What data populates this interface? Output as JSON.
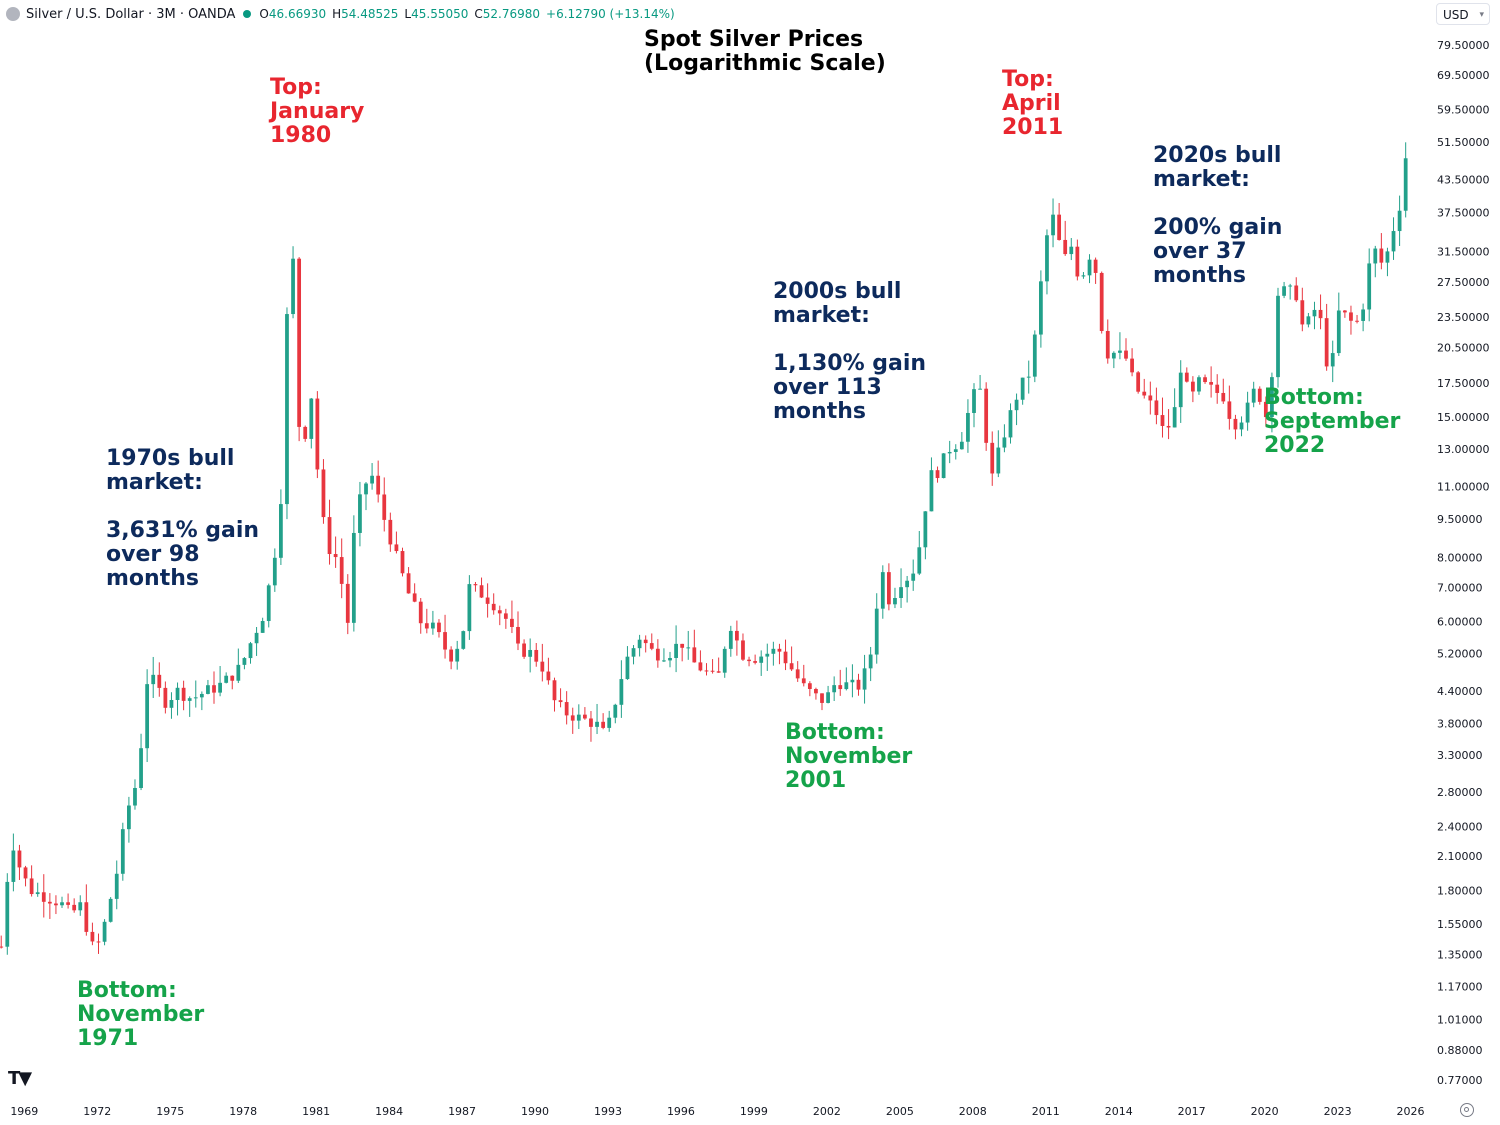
{
  "header": {
    "symbol": "Silver / U.S. Dollar · 3M · OANDA",
    "open_label": "O",
    "open": "46.66930",
    "high_label": "H",
    "high": "54.48525",
    "low_label": "L",
    "low": "45.55050",
    "close_label": "C",
    "close": "52.76980",
    "change": "+6.12790 (+13.14%)",
    "currency": "USD"
  },
  "colors": {
    "up": "#22a08a",
    "down": "#e8363f",
    "axis_text": "#131722",
    "annot_red": "#e8262f",
    "annot_navy": "#0d2a5c",
    "annot_green": "#15a34a"
  },
  "annotations": {
    "top_1980": "Top:\nJanuary\n1980",
    "top_2011": "Top:\nApril\n2011",
    "bull_1970s": "1970s bull\nmarket:\n\n3,631% gain\nover 98\nmonths",
    "bull_2000s": "2000s bull\nmarket:\n\n1,130% gain\nover 113\nmonths",
    "bull_2020s": "2020s bull\nmarket:\n\n200% gain\nover 37\nmonths",
    "bottom_1971": "Bottom:\nNovember\n1971",
    "bottom_2001": "Bottom:\nNovember\n2001",
    "bottom_2022": "Bottom:\nSeptember\n2022"
  },
  "chart_data": {
    "type": "candlestick",
    "title": "Spot Silver Prices\n(Logarithmic Scale)",
    "y_scale": "log",
    "ylim": [
      0.72,
      85
    ],
    "x_range": [
      1968.0,
      2026.8
    ],
    "x_ticks": [
      "1969",
      "1972",
      "1975",
      "1978",
      "1981",
      "1984",
      "1987",
      "1990",
      "1993",
      "1996",
      "1999",
      "2002",
      "2005",
      "2008",
      "2011",
      "2014",
      "2017",
      "2020",
      "2023",
      "2026"
    ],
    "y_ticks": [
      "79.50000",
      "69.50000",
      "59.50000",
      "51.50000",
      "43.50000",
      "37.50000",
      "31.50000",
      "27.50000",
      "23.50000",
      "20.50000",
      "17.50000",
      "15.00000",
      "13.00000",
      "11.00000",
      "9.50000",
      "8.00000",
      "7.00000",
      "6.00000",
      "5.20000",
      "4.40000",
      "3.80000",
      "3.30000",
      "2.80000",
      "2.40000",
      "2.10000",
      "1.80000",
      "1.55000",
      "1.35000",
      "1.17000",
      "1.01000",
      "0.88000",
      "0.77000"
    ],
    "quarterly_close_anchors": [
      [
        1968.1,
        1.4
      ],
      [
        1968.35,
        2.05
      ],
      [
        1968.6,
        2.25
      ],
      [
        1968.85,
        1.95
      ],
      [
        1969.3,
        1.8
      ],
      [
        1969.9,
        1.75
      ],
      [
        1970.5,
        1.7
      ],
      [
        1970.9,
        1.62
      ],
      [
        1971.3,
        1.68
      ],
      [
        1971.9,
        1.35
      ],
      [
        1972.3,
        1.55
      ],
      [
        1972.8,
        1.95
      ],
      [
        1973.2,
        2.55
      ],
      [
        1973.7,
        3.0
      ],
      [
        1974.0,
        4.6
      ],
      [
        1974.3,
        4.6
      ],
      [
        1974.8,
        4.2
      ],
      [
        1975.3,
        4.4
      ],
      [
        1975.9,
        4.25
      ],
      [
        1976.5,
        4.4
      ],
      [
        1977.0,
        4.5
      ],
      [
        1977.5,
        4.7
      ],
      [
        1977.9,
        4.9
      ],
      [
        1978.4,
        5.6
      ],
      [
        1978.9,
        6.3
      ],
      [
        1979.2,
        7.8
      ],
      [
        1979.5,
        9.0
      ],
      [
        1979.7,
        16.5
      ],
      [
        1979.85,
        28.0
      ],
      [
        1980.0,
        38.0
      ],
      [
        1980.2,
        15.0
      ],
      [
        1980.5,
        13.5
      ],
      [
        1980.8,
        16.5
      ],
      [
        1981.0,
        12.5
      ],
      [
        1981.4,
        8.5
      ],
      [
        1981.9,
        7.9
      ],
      [
        1982.3,
        6.0
      ],
      [
        1982.5,
        8.5
      ],
      [
        1982.9,
        11.0
      ],
      [
        1983.3,
        11.5
      ],
      [
        1983.8,
        9.5
      ],
      [
        1984.3,
        8.0
      ],
      [
        1984.8,
        6.8
      ],
      [
        1985.3,
        6.0
      ],
      [
        1985.9,
        5.8
      ],
      [
        1986.5,
        5.1
      ],
      [
        1987.0,
        5.6
      ],
      [
        1987.3,
        7.0
      ],
      [
        1987.8,
        6.8
      ],
      [
        1988.3,
        6.5
      ],
      [
        1988.9,
        6.0
      ],
      [
        1989.3,
        5.3
      ],
      [
        1989.9,
        5.2
      ],
      [
        1990.3,
        4.9
      ],
      [
        1990.8,
        4.2
      ],
      [
        1991.2,
        4.0
      ],
      [
        1991.8,
        3.9
      ],
      [
        1992.5,
        3.8
      ],
      [
        1992.9,
        3.6
      ],
      [
        1993.3,
        4.2
      ],
      [
        1993.7,
        5.0
      ],
      [
        1994.3,
        5.6
      ],
      [
        1994.9,
        5.2
      ],
      [
        1995.5,
        5.2
      ],
      [
        1996.0,
        5.5
      ],
      [
        1996.5,
        5.0
      ],
      [
        1997.0,
        4.8
      ],
      [
        1997.5,
        4.6
      ],
      [
        1998.0,
        6.0
      ],
      [
        1998.5,
        5.2
      ],
      [
        1999.0,
        5.1
      ],
      [
        1999.5,
        5.2
      ],
      [
        2000.0,
        5.3
      ],
      [
        2000.5,
        4.9
      ],
      [
        2001.0,
        4.5
      ],
      [
        2001.5,
        4.3
      ],
      [
        2001.9,
        4.2
      ],
      [
        2002.4,
        4.6
      ],
      [
        2002.9,
        4.5
      ],
      [
        2003.4,
        4.5
      ],
      [
        2003.9,
        5.4
      ],
      [
        2004.2,
        7.8
      ],
      [
        2004.6,
        6.5
      ],
      [
        2005.0,
        7.2
      ],
      [
        2005.5,
        7.4
      ],
      [
        2005.9,
        8.8
      ],
      [
        2006.2,
        11.5
      ],
      [
        2006.6,
        11.8
      ],
      [
        2007.0,
        13.0
      ],
      [
        2007.5,
        13.5
      ],
      [
        2008.0,
        16.5
      ],
      [
        2008.4,
        17.0
      ],
      [
        2008.7,
        11.0
      ],
      [
        2009.0,
        12.5
      ],
      [
        2009.4,
        14.5
      ],
      [
        2009.9,
        17.0
      ],
      [
        2010.4,
        18.5
      ],
      [
        2010.9,
        30.0
      ],
      [
        2011.2,
        38.0
      ],
      [
        2011.5,
        34.0
      ],
      [
        2011.7,
        29.5
      ],
      [
        2012.0,
        33.0
      ],
      [
        2012.4,
        27.5
      ],
      [
        2012.8,
        31.0
      ],
      [
        2013.1,
        28.5
      ],
      [
        2013.4,
        20.0
      ],
      [
        2013.9,
        20.0
      ],
      [
        2014.3,
        19.5
      ],
      [
        2014.7,
        17.0
      ],
      [
        2015.0,
        16.5
      ],
      [
        2015.5,
        15.5
      ],
      [
        2015.9,
        13.8
      ],
      [
        2016.3,
        15.5
      ],
      [
        2016.6,
        19.5
      ],
      [
        2016.9,
        16.0
      ],
      [
        2017.3,
        17.5
      ],
      [
        2017.8,
        17.0
      ],
      [
        2018.3,
        16.5
      ],
      [
        2018.7,
        14.5
      ],
      [
        2019.2,
        15.2
      ],
      [
        2019.7,
        17.5
      ],
      [
        2020.0,
        14.5
      ],
      [
        2020.3,
        18.5
      ],
      [
        2020.5,
        26.0
      ],
      [
        2020.9,
        26.5
      ],
      [
        2021.3,
        26.0
      ],
      [
        2021.6,
        22.0
      ],
      [
        2021.9,
        23.5
      ],
      [
        2022.2,
        25.0
      ],
      [
        2022.5,
        19.5
      ],
      [
        2022.75,
        18.5
      ],
      [
        2023.0,
        24.0
      ],
      [
        2023.4,
        23.5
      ],
      [
        2023.7,
        22.5
      ],
      [
        2024.0,
        24.0
      ],
      [
        2024.3,
        29.5
      ],
      [
        2024.6,
        32.0
      ],
      [
        2024.9,
        29.0
      ],
      [
        2025.2,
        34.0
      ],
      [
        2025.5,
        37.0
      ],
      [
        2025.75,
        46.67
      ],
      [
        2025.95,
        52.77
      ]
    ]
  }
}
